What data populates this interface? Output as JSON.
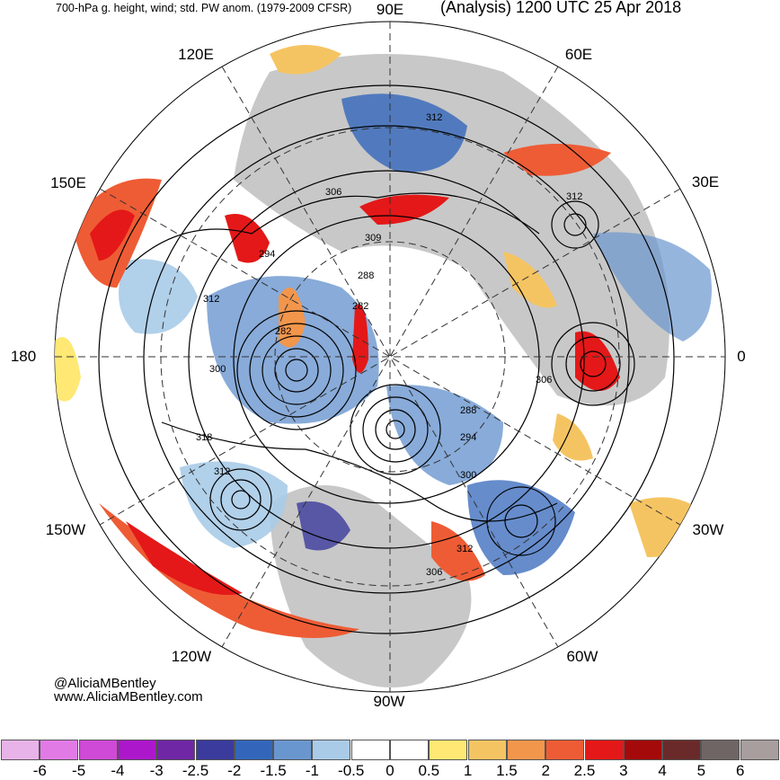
{
  "title_left": "700-hPa g. height, wind; std. PW anom. (1979-2009 CFSR)",
  "title_right": "(Analysis) 1200 UTC 25 Apr 2018",
  "longitude_labels": [
    {
      "id": "lon-90e",
      "text": "90E"
    },
    {
      "id": "lon-60e",
      "text": "60E"
    },
    {
      "id": "lon-30e",
      "text": "30E"
    },
    {
      "id": "lon-0",
      "text": "0"
    },
    {
      "id": "lon-30w",
      "text": "30W"
    },
    {
      "id": "lon-60w",
      "text": "60W"
    },
    {
      "id": "lon-90w",
      "text": "90W"
    },
    {
      "id": "lon-120w",
      "text": "120W"
    },
    {
      "id": "lon-150w",
      "text": "150W"
    },
    {
      "id": "lon-180",
      "text": "180"
    },
    {
      "id": "lon-150e",
      "text": "150E"
    },
    {
      "id": "lon-120e",
      "text": "120E"
    }
  ],
  "height_contour_labels": [
    "312",
    "306",
    "309",
    "294",
    "288",
    "282",
    "312",
    "282",
    "300",
    "306",
    "288",
    "294",
    "318",
    "312",
    "300",
    "312",
    "306",
    "312"
  ],
  "credits": {
    "twitter": "@AliciaMBentley",
    "website": "www.AliciaMBentley.com"
  },
  "colorbar": {
    "colors": [
      "#e8b3e8",
      "#e27ae6",
      "#cf4ad6",
      "#ad17cc",
      "#7027a6",
      "#3b3b9e",
      "#3366bb",
      "#6a96cf",
      "#a9cbe8",
      "#ffffff",
      "#ffffff",
      "#ffe873",
      "#f5c462",
      "#f2964c",
      "#ee5c35",
      "#e41818",
      "#a50a0a",
      "#6b2a2a",
      "#706565",
      "#a89e9e"
    ],
    "labels": [
      "-6",
      "-5",
      "-4",
      "-3",
      "-2.5",
      "-2",
      "-1.5",
      "-1",
      "-0.5",
      "0",
      "0.5",
      "1",
      "1.5",
      "2",
      "2.5",
      "3",
      "4",
      "5",
      "6"
    ]
  }
}
